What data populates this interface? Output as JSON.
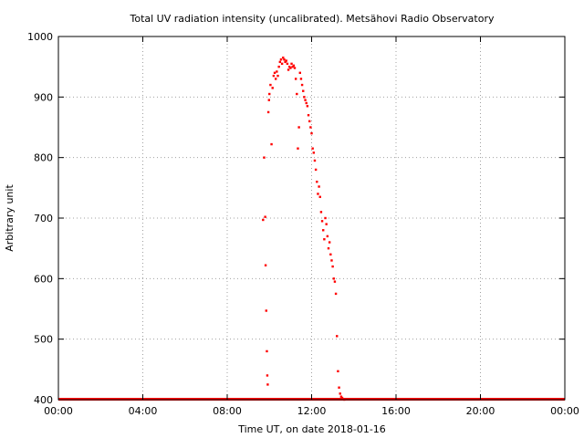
{
  "chart_data": {
    "type": "scatter",
    "title": "Total UV radiation intensity (uncalibrated). Metsähovi Radio Observatory",
    "xlabel": "Time UT, on date 2018-01-16",
    "ylabel": "Arbitrary unit",
    "xlim": [
      0,
      24
    ],
    "ylim": [
      400,
      1000
    ],
    "x_ticks": [
      "00:00",
      "04:00",
      "08:00",
      "12:00",
      "16:00",
      "20:00",
      "00:00"
    ],
    "y_ticks": [
      "400",
      "500",
      "600",
      "700",
      "800",
      "900",
      "1000"
    ],
    "grid": true,
    "marker_color": "#ff0000",
    "series": [
      {
        "x": [
          9.7,
          9.75,
          9.8,
          9.82,
          9.85,
          9.88,
          9.9,
          9.92,
          9.95,
          9.98,
          10.0,
          10.05,
          10.1,
          10.15,
          10.2,
          10.25,
          10.3,
          10.35,
          10.4,
          10.45,
          10.5,
          10.55,
          10.6,
          10.65,
          10.7,
          10.75,
          10.8,
          10.85,
          10.9,
          10.95,
          11.0,
          11.05,
          11.1,
          11.15,
          11.2,
          11.25,
          11.3,
          11.35,
          11.4,
          11.45,
          11.5,
          11.55,
          11.6,
          11.65,
          11.7,
          11.75,
          11.8,
          11.85,
          11.9,
          11.95,
          12.0,
          12.05,
          12.1,
          12.15,
          12.2,
          12.25,
          12.3,
          12.35,
          12.4,
          12.45,
          12.5,
          12.55,
          12.6,
          12.65,
          12.7,
          12.75,
          12.8,
          12.85,
          12.9,
          12.95,
          13.0,
          13.05,
          13.1,
          13.15,
          13.2,
          13.25,
          13.3,
          13.35,
          13.4,
          13.45,
          13.5,
          13.55
        ],
        "y": [
          697,
          800,
          702,
          622,
          547,
          480,
          440,
          425,
          875,
          895,
          905,
          920,
          822,
          915,
          935,
          940,
          930,
          942,
          935,
          950,
          958,
          962,
          955,
          965,
          962,
          958,
          960,
          955,
          945,
          950,
          948,
          955,
          950,
          952,
          948,
          930,
          905,
          815,
          850,
          940,
          930,
          920,
          910,
          900,
          895,
          890,
          885,
          870,
          860,
          850,
          840,
          815,
          808,
          795,
          780,
          760,
          740,
          752,
          735,
          710,
          695,
          680,
          665,
          700,
          690,
          670,
          650,
          660,
          640,
          630,
          620,
          600,
          595,
          575,
          505,
          447,
          420,
          410,
          405,
          403,
          401,
          400
        ]
      }
    ]
  }
}
